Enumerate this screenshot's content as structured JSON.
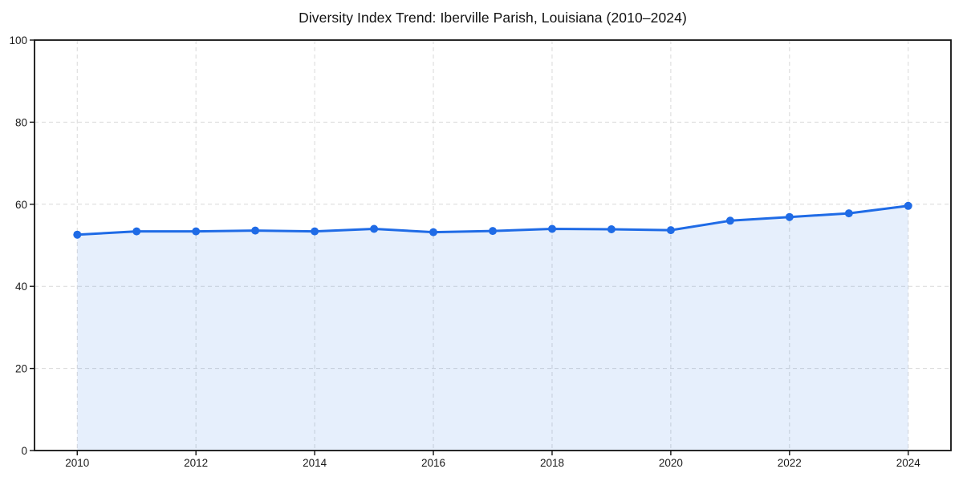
{
  "page": {
    "background": "#ffffff"
  },
  "chart_data": {
    "type": "area",
    "title": "Diversity Index Trend: Iberville Parish, Louisiana (2010–2024)",
    "series_name": "Diversity Index",
    "x": [
      2010,
      2011,
      2012,
      2013,
      2014,
      2015,
      2016,
      2017,
      2018,
      2019,
      2020,
      2021,
      2022,
      2023,
      2024
    ],
    "values": [
      52.6,
      53.4,
      53.4,
      53.6,
      53.4,
      54.0,
      53.2,
      53.5,
      54.0,
      53.9,
      53.7,
      56.0,
      56.9,
      57.8,
      59.6
    ],
    "xlabel": "",
    "ylabel": "",
    "xlim": [
      2009.28,
      2024.72
    ],
    "ylim": [
      0,
      100
    ],
    "xticks": [
      2010,
      2012,
      2014,
      2016,
      2018,
      2020,
      2022,
      2024
    ],
    "yticks": [
      0,
      20,
      40,
      60,
      80,
      100
    ],
    "grid": true,
    "grid_style": "dashed",
    "legend": false,
    "marker": "circle",
    "marker_radius": 5,
    "line_width": 3,
    "colors": {
      "line": "#1f6be6",
      "fill": "#1f6be6",
      "fill_opacity": 0.11,
      "grid": "#d9d9d9",
      "spine": "#111111",
      "tick_label": "#1a1a1a",
      "title": "#111111",
      "background": "#ffffff"
    }
  }
}
